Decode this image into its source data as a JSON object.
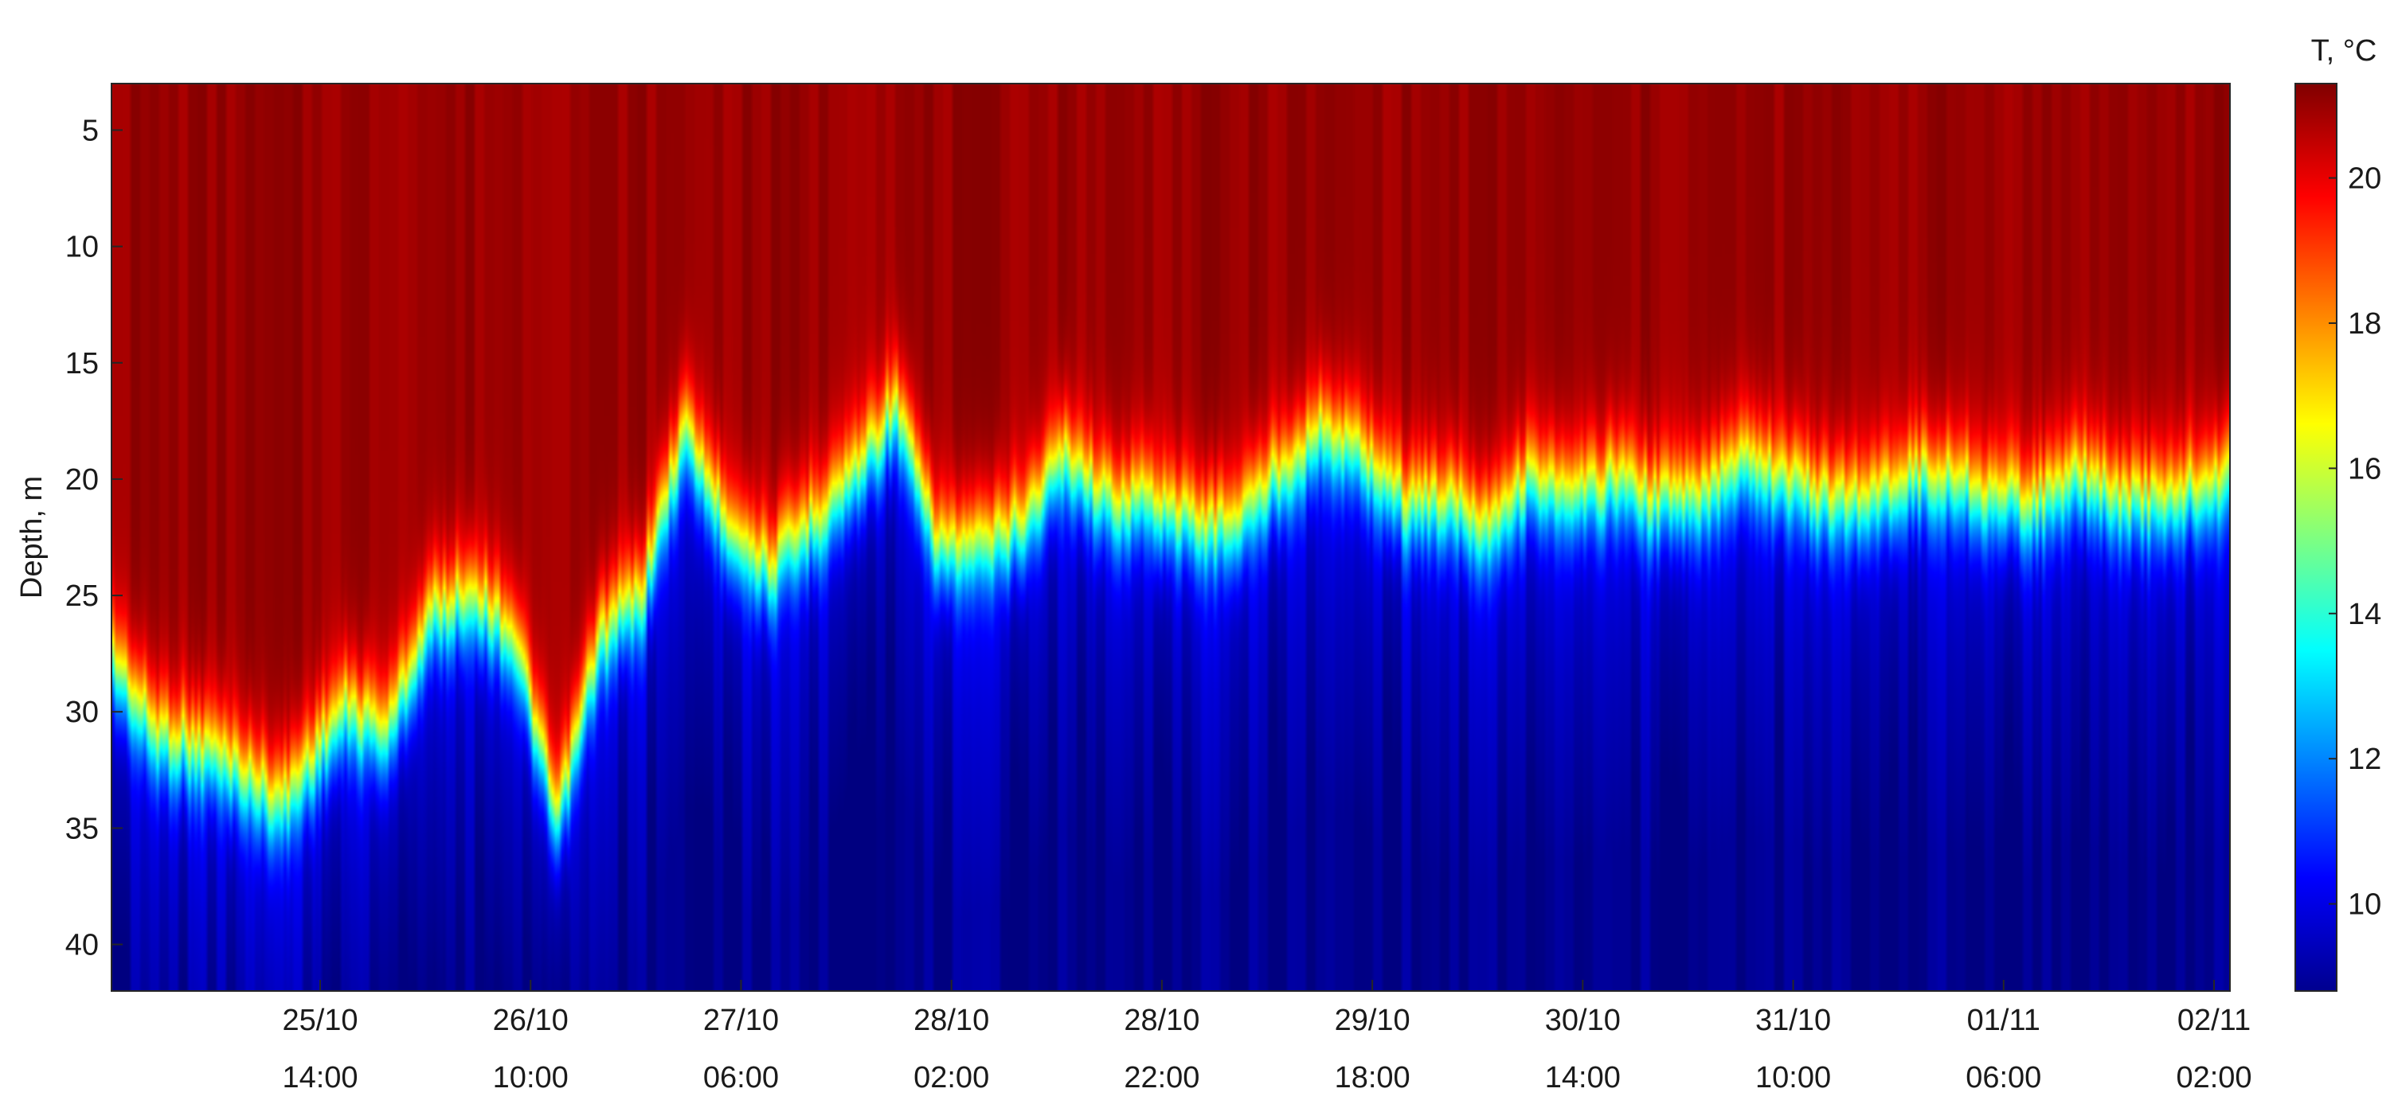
{
  "chart_data": {
    "type": "heatmap",
    "ylabel": "Depth, m",
    "y_reversed": true,
    "y_ticks": [
      5,
      10,
      15,
      20,
      25,
      30,
      35,
      40
    ],
    "ylim": [
      3,
      42
    ],
    "x_ticks": [
      {
        "date": "25/10",
        "time": "14:00"
      },
      {
        "date": "26/10",
        "time": "10:00"
      },
      {
        "date": "27/10",
        "time": "06:00"
      },
      {
        "date": "28/10",
        "time": "02:00"
      },
      {
        "date": "28/10",
        "time": "22:00"
      },
      {
        "date": "29/10",
        "time": "18:00"
      },
      {
        "date": "30/10",
        "time": "14:00"
      },
      {
        "date": "31/10",
        "time": "10:00"
      },
      {
        "date": "01/11",
        "time": "06:00"
      },
      {
        "date": "02/11",
        "time": "02:00"
      }
    ],
    "colorbar": {
      "title": "T, °C",
      "ticks": [
        10,
        12,
        14,
        16,
        18,
        20
      ],
      "range": [
        8.8,
        21.3
      ],
      "colormap": "jet"
    },
    "thermocline_depth_m": [
      [
        0.0,
        28
      ],
      [
        0.02,
        31
      ],
      [
        0.05,
        32
      ],
      [
        0.08,
        34
      ],
      [
        0.11,
        30
      ],
      [
        0.13,
        31
      ],
      [
        0.15,
        26
      ],
      [
        0.17,
        25
      ],
      [
        0.19,
        27
      ],
      [
        0.21,
        35
      ],
      [
        0.23,
        27
      ],
      [
        0.25,
        25
      ],
      [
        0.27,
        18
      ],
      [
        0.29,
        22
      ],
      [
        0.31,
        24
      ],
      [
        0.33,
        22
      ],
      [
        0.35,
        20
      ],
      [
        0.37,
        17
      ],
      [
        0.39,
        23
      ],
      [
        0.41,
        23
      ],
      [
        0.43,
        22
      ],
      [
        0.45,
        19
      ],
      [
        0.47,
        21
      ],
      [
        0.49,
        21
      ],
      [
        0.51,
        22
      ],
      [
        0.53,
        22
      ],
      [
        0.55,
        20
      ],
      [
        0.57,
        18
      ],
      [
        0.59,
        19
      ],
      [
        0.61,
        21
      ],
      [
        0.63,
        21
      ],
      [
        0.65,
        22
      ],
      [
        0.67,
        20
      ],
      [
        0.69,
        21
      ],
      [
        0.71,
        20
      ],
      [
        0.73,
        21
      ],
      [
        0.75,
        21
      ],
      [
        0.77,
        19
      ],
      [
        0.79,
        20
      ],
      [
        0.81,
        21
      ],
      [
        0.83,
        21
      ],
      [
        0.85,
        20
      ],
      [
        0.87,
        20
      ],
      [
        0.89,
        21
      ],
      [
        0.91,
        21
      ],
      [
        0.93,
        20
      ],
      [
        0.95,
        21
      ],
      [
        0.97,
        21
      ],
      [
        1.0,
        20
      ]
    ],
    "surface_temp_c": 21.0,
    "bottom_temp_c": 9.5
  }
}
